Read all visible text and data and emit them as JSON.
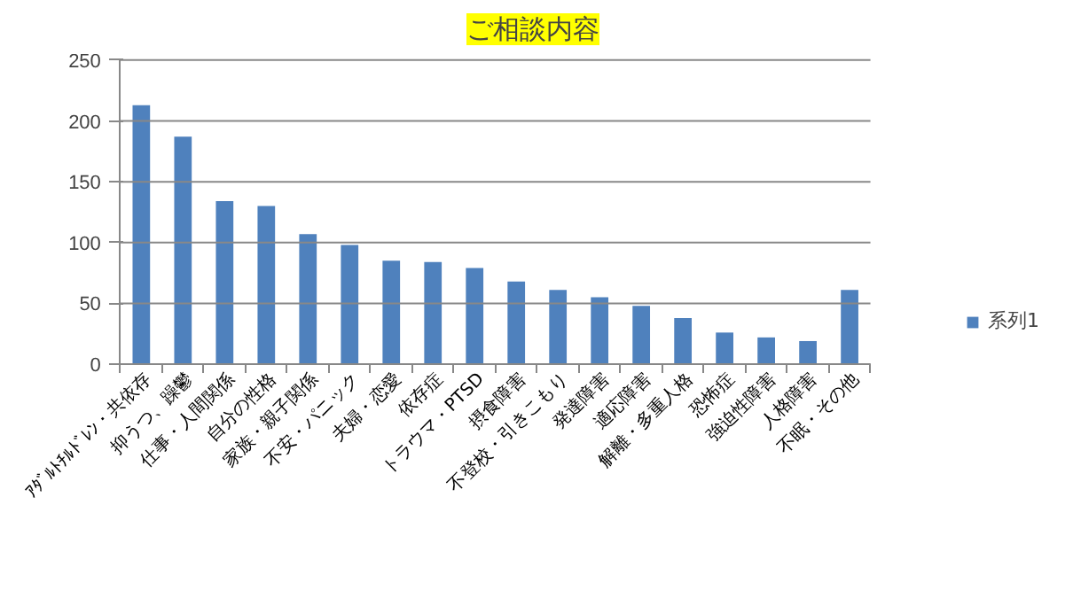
{
  "chart_data": {
    "type": "bar",
    "title": "ご相談内容",
    "categories": [
      "ｱﾀﾞﾙﾄﾁﾙﾄﾞﾚﾝ・共依存",
      "抑うつ、躁鬱",
      "仕事・人間関係",
      "自分の性格",
      "家族・親子関係",
      "不安・パニック",
      "夫婦・恋愛",
      "依存症",
      "トラウマ・PTSD",
      "摂食障害",
      "不登校・引きこもり",
      "発達障害",
      "適応障害",
      "解離・多重人格",
      "恐怖症",
      "強迫性障害",
      "人格障害",
      "不眠・その他"
    ],
    "series": [
      {
        "name": "系列1",
        "color": "#4f81bd",
        "values": [
          213,
          187,
          134,
          130,
          107,
          98,
          85,
          84,
          79,
          68,
          61,
          55,
          48,
          38,
          26,
          22,
          19,
          61
        ]
      }
    ],
    "ylim": [
      0,
      250
    ],
    "yticks": [
      0,
      50,
      100,
      150,
      200,
      250
    ],
    "grid": "y",
    "legend": "right"
  }
}
